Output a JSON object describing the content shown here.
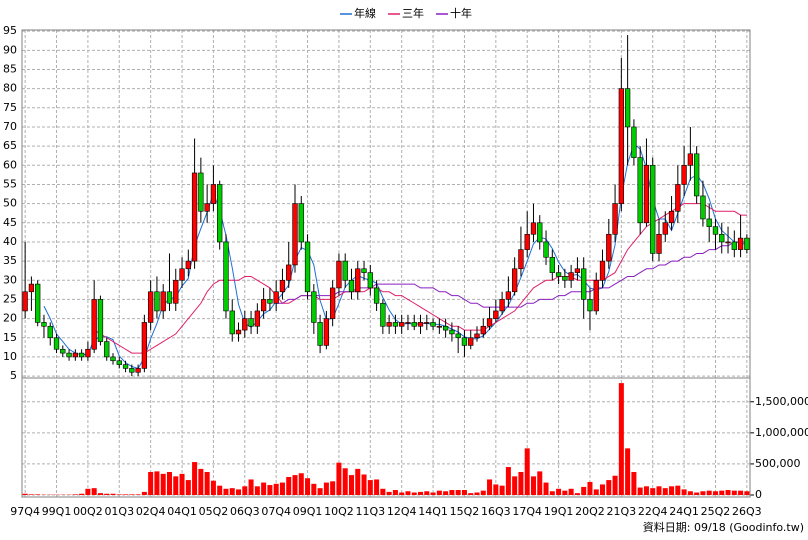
{
  "chart_data": {
    "type": "candlestick",
    "legend": "top",
    "grid": true,
    "up_color": "#ff0000",
    "down_color": "#00cc00",
    "categories": [
      "97Q4",
      null,
      null,
      null,
      null,
      "99Q1",
      null,
      null,
      null,
      null,
      "00Q2",
      null,
      null,
      null,
      null,
      "01Q3",
      null,
      null,
      null,
      null,
      "02Q4",
      null,
      null,
      null,
      null,
      "04Q1",
      null,
      null,
      null,
      null,
      "05Q2",
      null,
      null,
      null,
      null,
      "06Q3",
      null,
      null,
      null,
      null,
      "07Q4",
      null,
      null,
      null,
      null,
      "09Q1",
      null,
      null,
      null,
      null,
      "10Q2",
      null,
      null,
      null,
      null,
      "11Q3",
      null,
      null,
      null,
      null,
      "12Q4",
      null,
      null,
      null,
      null,
      "14Q1",
      null,
      null,
      null,
      null,
      "15Q2",
      null,
      null,
      null,
      null,
      "16Q3",
      null,
      null,
      null,
      null,
      "17Q4",
      null,
      null,
      null,
      null,
      "19Q1",
      null,
      null,
      null,
      null,
      "20Q2",
      null,
      null,
      null,
      null,
      "21Q3",
      null,
      null,
      null,
      null,
      "22Q4",
      null,
      null,
      null,
      null,
      "24Q1",
      null,
      null,
      null,
      null,
      "25Q2",
      null,
      null,
      null,
      null,
      "26Q3"
    ],
    "open": [
      22,
      27,
      29,
      19,
      18,
      15,
      12,
      11,
      10,
      11,
      10,
      12,
      25,
      14,
      10,
      9,
      8,
      7,
      6,
      7,
      19,
      27,
      22,
      27,
      24,
      30,
      33,
      35,
      58,
      48,
      50,
      55,
      40,
      22,
      16,
      17,
      20,
      18,
      22,
      25,
      24,
      27,
      30,
      34,
      50,
      40,
      27,
      19,
      13,
      20,
      28,
      35,
      30,
      27,
      33,
      32,
      28,
      24,
      18,
      19,
      18,
      19,
      19,
      18,
      19,
      19,
      18,
      18,
      17,
      16,
      15,
      13,
      15,
      16,
      18,
      20,
      22,
      25,
      27,
      33,
      38,
      42,
      45,
      40,
      36,
      32,
      31,
      30,
      32,
      33,
      25,
      22,
      30,
      35,
      42,
      50,
      80,
      70,
      62,
      45,
      60,
      37,
      42,
      45,
      48,
      55,
      60,
      63,
      52,
      46,
      44,
      42,
      40,
      40,
      38,
      41
    ],
    "high": [
      40,
      31,
      30,
      21,
      19,
      16,
      13,
      12,
      12,
      12,
      14,
      30,
      26,
      15,
      11,
      10,
      9,
      8,
      8,
      21,
      30,
      31,
      29,
      37,
      33,
      36,
      38,
      67,
      62,
      55,
      60,
      56,
      42,
      25,
      19,
      22,
      22,
      24,
      28,
      28,
      30,
      33,
      40,
      55,
      52,
      42,
      29,
      21,
      22,
      30,
      37,
      37,
      33,
      35,
      35,
      34,
      30,
      25,
      21,
      21,
      21,
      21,
      21,
      21,
      21,
      20,
      20,
      20,
      19,
      18,
      17,
      17,
      18,
      20,
      23,
      25,
      27,
      31,
      36,
      44,
      48,
      50,
      47,
      43,
      38,
      34,
      33,
      34,
      36,
      36,
      28,
      32,
      38,
      46,
      55,
      88,
      94,
      72,
      65,
      67,
      62,
      46,
      48,
      52,
      60,
      65,
      70,
      65,
      56,
      50,
      46,
      45,
      44,
      43,
      47,
      42
    ],
    "low": [
      20,
      22,
      18,
      15,
      13,
      11,
      10,
      9,
      9,
      9,
      9,
      11,
      13,
      9,
      8,
      7,
      6,
      5,
      5,
      6,
      17,
      20,
      20,
      22,
      22,
      28,
      31,
      33,
      45,
      45,
      48,
      38,
      20,
      14,
      14,
      15,
      16,
      16,
      20,
      22,
      22,
      25,
      28,
      32,
      38,
      25,
      16,
      11,
      12,
      18,
      26,
      28,
      25,
      25,
      30,
      26,
      22,
      16,
      16,
      16,
      16,
      17,
      17,
      16,
      17,
      17,
      16,
      15,
      14,
      11,
      10,
      12,
      14,
      15,
      17,
      19,
      21,
      23,
      26,
      31,
      36,
      40,
      38,
      34,
      30,
      29,
      28,
      28,
      30,
      20,
      17,
      21,
      28,
      33,
      40,
      48,
      60,
      60,
      42,
      44,
      35,
      35,
      40,
      43,
      45,
      52,
      56,
      50,
      44,
      40,
      38,
      37,
      37,
      36,
      36,
      37
    ],
    "close": [
      27,
      29,
      19,
      18,
      15,
      12,
      11,
      10,
      11,
      10,
      12,
      25,
      14,
      10,
      9,
      8,
      7,
      6,
      7,
      19,
      27,
      22,
      27,
      24,
      30,
      33,
      35,
      58,
      48,
      50,
      55,
      40,
      22,
      16,
      17,
      20,
      18,
      22,
      25,
      24,
      27,
      30,
      34,
      50,
      40,
      27,
      19,
      13,
      20,
      28,
      35,
      30,
      27,
      33,
      32,
      28,
      24,
      18,
      19,
      18,
      19,
      19,
      18,
      19,
      19,
      18,
      18,
      17,
      16,
      15,
      13,
      15,
      16,
      18,
      20,
      22,
      25,
      27,
      33,
      38,
      42,
      45,
      40,
      36,
      32,
      31,
      30,
      32,
      33,
      25,
      22,
      30,
      35,
      42,
      50,
      80,
      70,
      62,
      45,
      60,
      37,
      42,
      45,
      48,
      55,
      60,
      63,
      52,
      46,
      44,
      42,
      40,
      40,
      38,
      41,
      38
    ],
    "series": [
      {
        "name": "年線",
        "color": "#1f6fd6",
        "values": [
          null,
          null,
          null,
          23.25,
          20,
          16,
          14,
          12,
          11,
          10.5,
          10.75,
          14.5,
          15.25,
          15.25,
          14.5,
          10.25,
          8.5,
          7.5,
          7,
          9.75,
          14.75,
          18.75,
          23.75,
          25,
          25.75,
          28.5,
          30.5,
          39,
          43.5,
          47.75,
          52.75,
          48.25,
          41.75,
          33.25,
          23.75,
          18.75,
          17.75,
          19.25,
          21.25,
          22.25,
          24.5,
          26.5,
          28.75,
          35.25,
          38.5,
          37.75,
          34,
          24.75,
          19.75,
          20,
          24,
          28.25,
          30,
          31.25,
          30.5,
          30,
          29.25,
          25.5,
          22.25,
          19.75,
          18.5,
          18.75,
          18.5,
          18.75,
          18.75,
          18.5,
          18.5,
          18,
          17.25,
          16.5,
          15.25,
          14.75,
          14.75,
          15.5,
          17.25,
          19,
          21.25,
          23.5,
          26.75,
          30.75,
          35,
          39.5,
          41.25,
          40.75,
          38.25,
          34.75,
          32.25,
          31.25,
          31.5,
          30,
          28,
          27.5,
          28,
          32.25,
          39.25,
          51.75,
          60.5,
          65.5,
          64.25,
          59.25,
          51,
          46,
          46,
          43,
          47.5,
          52,
          56.5,
          57.5,
          55.25,
          51.25,
          46,
          43,
          41.5,
          40,
          39.75,
          39.25
        ]
      },
      {
        "name": "三年",
        "color": "#e0206a",
        "values": [
          null,
          null,
          null,
          null,
          null,
          null,
          null,
          null,
          null,
          null,
          null,
          17,
          16,
          15,
          14,
          13,
          12,
          11,
          11,
          11,
          12,
          13,
          14,
          15,
          16,
          18,
          20,
          22,
          24,
          27,
          29,
          30,
          30,
          30,
          30,
          31,
          31,
          30,
          29,
          28,
          26,
          24,
          24,
          25,
          26,
          26,
          26,
          25,
          25,
          25,
          26,
          27,
          27,
          27,
          27,
          28,
          28,
          27,
          27,
          26,
          26,
          25,
          24,
          23,
          22,
          21,
          20,
          19,
          18,
          18,
          17,
          17,
          17,
          17,
          18,
          19,
          20,
          21,
          22,
          24,
          26,
          28,
          29,
          30,
          30,
          31,
          31,
          31,
          30,
          30,
          30,
          30,
          30,
          31,
          32,
          35,
          38,
          40,
          42,
          44,
          45,
          46,
          47,
          48,
          49,
          50,
          50,
          50,
          50,
          49,
          48,
          48,
          48,
          48,
          47,
          47
        ]
      },
      {
        "name": "十年",
        "color": "#8a1fc0",
        "values": [
          null,
          null,
          null,
          null,
          null,
          null,
          null,
          null,
          null,
          null,
          null,
          null,
          null,
          null,
          null,
          null,
          null,
          null,
          null,
          null,
          null,
          null,
          null,
          null,
          null,
          null,
          null,
          null,
          null,
          null,
          null,
          null,
          null,
          null,
          null,
          null,
          null,
          null,
          null,
          null,
          24,
          24,
          25,
          25,
          26,
          26,
          26,
          26,
          26,
          26,
          27,
          27,
          27,
          28,
          28,
          28,
          29,
          29,
          29,
          29,
          29,
          29,
          29,
          28,
          28,
          28,
          27,
          27,
          26,
          26,
          25,
          24,
          24,
          23,
          23,
          23,
          23,
          23,
          23,
          23,
          24,
          24,
          25,
          25,
          25,
          26,
          26,
          27,
          27,
          27,
          27,
          28,
          28,
          28,
          29,
          30,
          31,
          31,
          32,
          33,
          33,
          34,
          34,
          35,
          35,
          36,
          36,
          37,
          37,
          38,
          38,
          39,
          39,
          40,
          40,
          40
        ]
      }
    ],
    "ylim": [
      4.5,
      95.3
    ],
    "yticks": [
      5,
      10,
      15,
      20,
      25,
      30,
      35,
      40,
      45,
      50,
      55,
      60,
      65,
      70,
      75,
      80,
      85,
      90,
      95
    ],
    "volume": {
      "color": "#ff0000",
      "values": [
        20000,
        10000,
        10000,
        5000,
        5000,
        5000,
        5000,
        5000,
        10000,
        20000,
        100000,
        110000,
        30000,
        20000,
        20000,
        10000,
        10000,
        10000,
        10000,
        50000,
        370000,
        380000,
        340000,
        370000,
        300000,
        340000,
        240000,
        530000,
        420000,
        370000,
        230000,
        150000,
        100000,
        110000,
        90000,
        140000,
        250000,
        140000,
        200000,
        160000,
        180000,
        200000,
        290000,
        320000,
        350000,
        270000,
        180000,
        110000,
        200000,
        220000,
        520000,
        430000,
        320000,
        420000,
        330000,
        240000,
        250000,
        100000,
        50000,
        80000,
        40000,
        60000,
        40000,
        50000,
        60000,
        40000,
        70000,
        60000,
        80000,
        80000,
        80000,
        30000,
        40000,
        70000,
        250000,
        170000,
        150000,
        450000,
        300000,
        370000,
        750000,
        300000,
        380000,
        200000,
        60000,
        100000,
        70000,
        100000,
        30000,
        130000,
        210000,
        90000,
        170000,
        240000,
        310000,
        1800000,
        750000,
        370000,
        120000,
        140000,
        110000,
        140000,
        110000,
        140000,
        150000,
        90000,
        60000,
        40000,
        60000,
        70000,
        60000,
        70000,
        80000,
        70000,
        70000,
        60000
      ],
      "ylim": [
        0,
        1850000
      ],
      "yticks": [
        0,
        {
          "value": 500000,
          "label": "500,000"
        },
        {
          "value": 1000000,
          "label": "1,000,000"
        },
        {
          "value": 1500000,
          "label": "1,500,000"
        }
      ]
    },
    "footer": "資料日期: 09/18 (Goodinfo.tw)"
  }
}
